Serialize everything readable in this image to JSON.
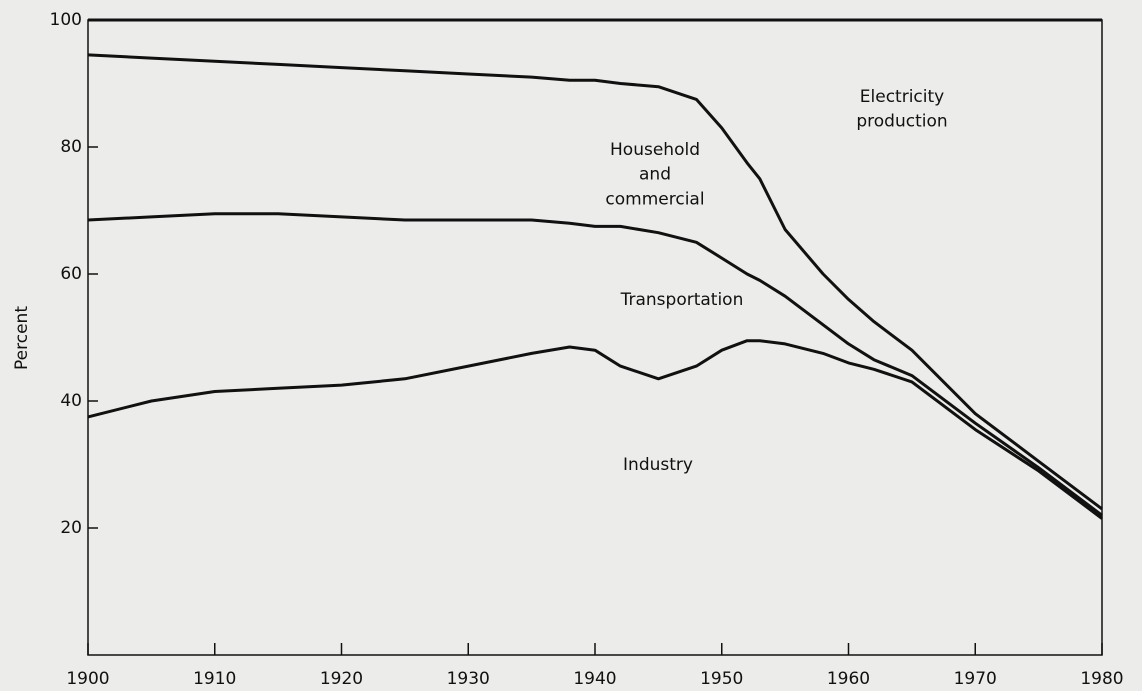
{
  "chart_data": {
    "type": "stacked_line",
    "y_label": "Percent",
    "x": [
      1900,
      1905,
      1910,
      1915,
      1920,
      1925,
      1930,
      1935,
      1938,
      1940,
      1942,
      1945,
      1948,
      1950,
      1952,
      1953,
      1955,
      1958,
      1960,
      1962,
      1965,
      1970,
      1975,
      1980
    ],
    "series": [
      {
        "name": "Industry",
        "color": "#111111",
        "values": [
          37.5,
          40,
          41.5,
          42,
          42.5,
          43.5,
          45.5,
          47.5,
          48.5,
          48,
          45.5,
          43.5,
          45.5,
          48,
          49.5,
          49.5,
          49,
          47.5,
          46,
          45,
          43,
          35.5,
          29,
          21.5
        ]
      },
      {
        "name": "Transportation",
        "color": "#111111",
        "values": [
          31,
          29,
          28,
          27.5,
          26.5,
          25,
          23,
          21,
          19.5,
          19.5,
          22,
          23,
          19.5,
          14.5,
          10.5,
          9.5,
          7.5,
          4.5,
          3,
          1.5,
          1,
          1,
          0.5,
          0.5
        ]
      },
      {
        "name": "Household and commercial",
        "color": "#111111",
        "values": [
          26,
          25,
          24,
          23.5,
          23.5,
          23.5,
          23,
          22.5,
          22.5,
          23,
          22.5,
          23,
          22.5,
          20.5,
          17.5,
          16,
          10.5,
          8,
          7,
          6,
          4,
          1.5,
          1,
          1
        ]
      },
      {
        "name": "Electricity production",
        "color": "#111111",
        "values": [
          5.5,
          6,
          6.5,
          7,
          7.5,
          8,
          8.5,
          9,
          9.5,
          9.5,
          10,
          10.5,
          12.5,
          17,
          22.5,
          25,
          33,
          40,
          44,
          47.5,
          52,
          62,
          69.5,
          77
        ]
      }
    ],
    "xlim": [
      1900,
      1980
    ],
    "xticks": [
      1900,
      1910,
      1920,
      1930,
      1940,
      1950,
      1960,
      1970,
      1980
    ],
    "ylim": [
      0,
      100
    ],
    "yticks": [
      20,
      40,
      60,
      80,
      100
    ],
    "grid": false
  }
}
